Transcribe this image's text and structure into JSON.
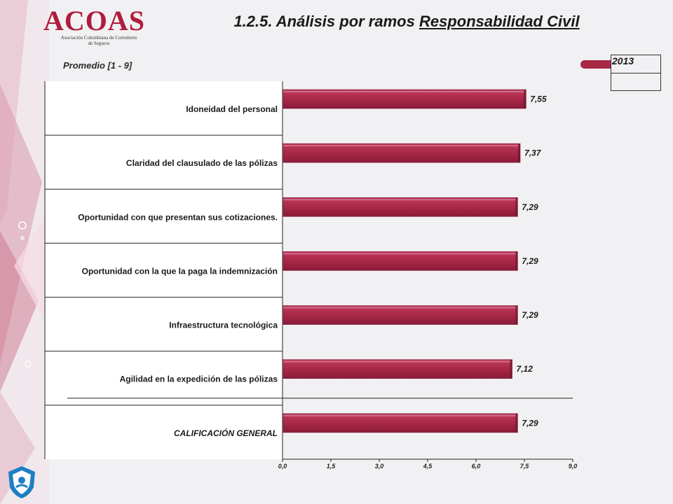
{
  "header": {
    "logo_text": "ACOAS",
    "logo_subtitle": "Asociación Colombiana de Corredores de Seguros",
    "title_prefix": "1.2.5. Análisis por ramos ",
    "title_underlined": "Responsabilidad Civil"
  },
  "colors": {
    "bar": "#a82848",
    "accent": "#b01c3d"
  },
  "chart_data": {
    "type": "bar",
    "orientation": "horizontal",
    "scale_label": "Promedio  [1 - 9]",
    "categories": [
      "Idoneidad del personal",
      "Claridad del clausulado de las pólizas",
      "Oportunidad con que presentan sus cotizaciones.",
      "Oportunidad con la que la paga la indemnización",
      "Infraestructura tecnológica",
      "Agilidad en la expedición de las pólizas",
      "CALIFICACIÓN GENERAL"
    ],
    "series": [
      {
        "name": "2013",
        "values": [
          7.55,
          7.37,
          7.29,
          7.29,
          7.29,
          7.12,
          7.29
        ],
        "value_labels": [
          "7,55",
          "7,37",
          "7,29",
          "7,29",
          "7,29",
          "7,12",
          "7,29"
        ]
      }
    ],
    "xlim": [
      0,
      9
    ],
    "xticks": [
      "0,0",
      "1,5",
      "3,0",
      "4,5",
      "6,0",
      "7,5",
      "9,0"
    ],
    "legend": {
      "position": "top-right",
      "label": "2013"
    }
  }
}
